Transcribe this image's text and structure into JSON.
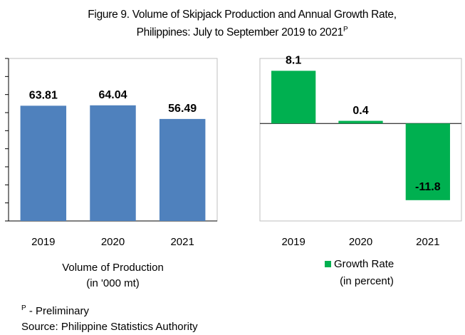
{
  "header": {
    "title": "Figure 9. Volume of Skipjack Production and  Annual Growth Rate, Philippines: July to September 2019 to 2021",
    "superscript": "P"
  },
  "chart_data": [
    {
      "type": "bar",
      "categories": [
        "2019",
        "2020",
        "2021"
      ],
      "values": [
        63.81,
        64.04,
        56.49
      ],
      "color": "#4f81bd",
      "ylim": [
        0,
        90
      ],
      "yticks": [
        0,
        10,
        20,
        30,
        40,
        50,
        60,
        70,
        80,
        90
      ],
      "x_label": [
        "Volume of Production",
        "(in '000 mt)"
      ]
    },
    {
      "type": "bar",
      "categories": [
        "2019",
        "2020",
        "2021"
      ],
      "ylim": [
        -15,
        10
      ],
      "series": [
        {
          "name": "Growth Rate",
          "color": "#00b050",
          "values": [
            8.1,
            0.4,
            -11.8
          ]
        }
      ],
      "legend_note": "(in percent)"
    }
  ],
  "footnote": {
    "symbol": "P",
    "text": " - Preliminary",
    "source": "Source: Philippine Statistics Authority"
  }
}
